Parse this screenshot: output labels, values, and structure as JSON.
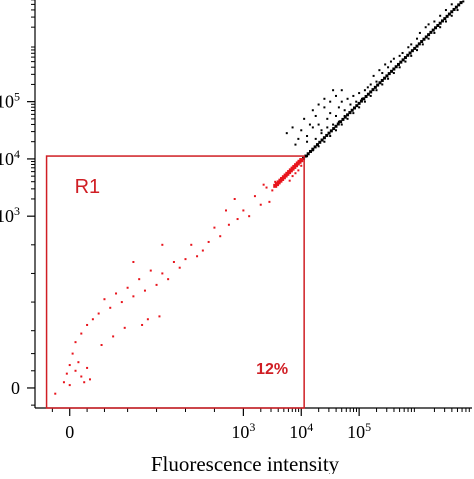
{
  "chart_data": {
    "type": "scatter",
    "title": "",
    "xlabel": "Fluorescence intensity",
    "ylabel": "",
    "scale": "biexponential",
    "xlim": [
      -0.6,
      6.95
    ],
    "ylim": [
      -0.35,
      6.95
    ],
    "x_ticks": [
      {
        "value": 0,
        "label": "0"
      },
      {
        "value": 3,
        "label": "10",
        "exp": "3"
      },
      {
        "value": 4,
        "label": "10",
        "exp": "4"
      },
      {
        "value": 5,
        "label": "10",
        "exp": "5"
      }
    ],
    "y_ticks": [
      {
        "value": 0,
        "label": "0"
      },
      {
        "value": 3,
        "label": "10",
        "exp": "3"
      },
      {
        "value": 4,
        "label": "10",
        "exp": "4"
      },
      {
        "value": 5,
        "label": "10",
        "exp": "5"
      }
    ],
    "grid": false,
    "colors": {
      "points": "#000000",
      "gated_points": "#e8141c",
      "gate": "#d01e24",
      "axis": "#000000"
    },
    "gate": {
      "name": "R1",
      "x_range": [
        -0.4,
        4.05
      ],
      "y_range": [
        -0.35,
        4.05
      ],
      "percent_label": "12%"
    },
    "series": [
      {
        "name": "",
        "color": "#000000",
        "points": [
          {
            "x": 4.1,
            "y": 4.05
          },
          {
            "x": 4.2,
            "y": 4.15
          },
          {
            "x": 4.3,
            "y": 4.22
          },
          {
            "x": 4.4,
            "y": 4.3
          },
          {
            "x": 4.5,
            "y": 4.4
          },
          {
            "x": 4.6,
            "y": 4.5
          },
          {
            "x": 4.7,
            "y": 4.6
          },
          {
            "x": 4.8,
            "y": 4.7
          },
          {
            "x": 4.9,
            "y": 4.8
          },
          {
            "x": 5.0,
            "y": 4.9
          },
          {
            "x": 5.1,
            "y": 5.0
          },
          {
            "x": 5.2,
            "y": 5.1
          },
          {
            "x": 5.3,
            "y": 5.2
          },
          {
            "x": 5.4,
            "y": 5.3
          },
          {
            "x": 5.5,
            "y": 5.4
          },
          {
            "x": 5.6,
            "y": 5.5
          },
          {
            "x": 5.7,
            "y": 5.6
          },
          {
            "x": 5.8,
            "y": 5.7
          },
          {
            "x": 5.9,
            "y": 5.8
          },
          {
            "x": 6.0,
            "y": 5.9
          },
          {
            "x": 6.1,
            "y": 6.0
          },
          {
            "x": 6.2,
            "y": 6.1
          },
          {
            "x": 6.3,
            "y": 6.2
          },
          {
            "x": 6.4,
            "y": 6.3
          },
          {
            "x": 6.5,
            "y": 6.4
          },
          {
            "x": 6.6,
            "y": 6.5
          },
          {
            "x": 6.7,
            "y": 6.6
          },
          {
            "x": 6.8,
            "y": 6.75
          },
          {
            "x": 6.9,
            "y": 6.85
          },
          {
            "x": 4.1,
            "y": 4.4
          },
          {
            "x": 4.2,
            "y": 4.55
          },
          {
            "x": 4.3,
            "y": 4.6
          },
          {
            "x": 4.35,
            "y": 4.45
          },
          {
            "x": 4.45,
            "y": 4.7
          },
          {
            "x": 4.5,
            "y": 4.8
          },
          {
            "x": 4.55,
            "y": 4.6
          },
          {
            "x": 4.6,
            "y": 4.75
          },
          {
            "x": 4.65,
            "y": 4.9
          },
          {
            "x": 4.7,
            "y": 5.0
          },
          {
            "x": 4.75,
            "y": 4.85
          },
          {
            "x": 4.8,
            "y": 5.05
          },
          {
            "x": 4.85,
            "y": 4.95
          },
          {
            "x": 4.9,
            "y": 5.1
          },
          {
            "x": 4.95,
            "y": 5.0
          },
          {
            "x": 5.0,
            "y": 5.15
          },
          {
            "x": 5.05,
            "y": 5.05
          },
          {
            "x": 5.1,
            "y": 5.2
          },
          {
            "x": 5.2,
            "y": 5.3
          },
          {
            "x": 5.3,
            "y": 5.35
          },
          {
            "x": 5.4,
            "y": 5.5
          },
          {
            "x": 5.5,
            "y": 5.6
          },
          {
            "x": 5.6,
            "y": 5.75
          },
          {
            "x": 5.75,
            "y": 5.85
          },
          {
            "x": 5.9,
            "y": 6.0
          },
          {
            "x": 6.05,
            "y": 6.2
          },
          {
            "x": 6.2,
            "y": 6.35
          },
          {
            "x": 6.4,
            "y": 6.5
          },
          {
            "x": 6.6,
            "y": 6.7
          },
          {
            "x": 4.15,
            "y": 4.6
          },
          {
            "x": 4.25,
            "y": 4.75
          },
          {
            "x": 4.4,
            "y": 4.9
          },
          {
            "x": 4.5,
            "y": 5.0
          },
          {
            "x": 4.6,
            "y": 5.1
          },
          {
            "x": 4.7,
            "y": 5.2
          },
          {
            "x": 4.3,
            "y": 4.95
          },
          {
            "x": 4.4,
            "y": 5.05
          },
          {
            "x": 4.55,
            "y": 5.2
          },
          {
            "x": 4.2,
            "y": 4.85
          },
          {
            "x": 4.05,
            "y": 4.7
          },
          {
            "x": 3.75,
            "y": 4.45
          },
          {
            "x": 3.85,
            "y": 4.55
          },
          {
            "x": 3.95,
            "y": 4.35
          },
          {
            "x": 4.0,
            "y": 4.5
          },
          {
            "x": 3.9,
            "y": 4.25
          },
          {
            "x": 4.1,
            "y": 4.3
          },
          {
            "x": 4.25,
            "y": 4.35
          },
          {
            "x": 4.35,
            "y": 4.5
          },
          {
            "x": 4.45,
            "y": 4.55
          },
          {
            "x": 4.65,
            "y": 4.65
          },
          {
            "x": 4.75,
            "y": 4.75
          },
          {
            "x": 4.85,
            "y": 4.8
          },
          {
            "x": 5.15,
            "y": 5.25
          },
          {
            "x": 5.25,
            "y": 5.45
          },
          {
            "x": 5.35,
            "y": 5.55
          },
          {
            "x": 5.45,
            "y": 5.65
          },
          {
            "x": 5.55,
            "y": 5.7
          },
          {
            "x": 5.7,
            "y": 5.8
          },
          {
            "x": 5.85,
            "y": 5.95
          },
          {
            "x": 6.0,
            "y": 6.1
          },
          {
            "x": 6.15,
            "y": 6.3
          },
          {
            "x": 6.3,
            "y": 6.4
          },
          {
            "x": 6.5,
            "y": 6.6
          },
          {
            "x": 6.7,
            "y": 6.8
          },
          {
            "x": 6.85,
            "y": 6.9
          }
        ]
      },
      {
        "name": "R1",
        "color": "#e8141c",
        "points": [
          {
            "x": 3.95,
            "y": 3.95
          },
          {
            "x": 3.9,
            "y": 3.9
          },
          {
            "x": 3.85,
            "y": 3.85
          },
          {
            "x": 3.8,
            "y": 3.78
          },
          {
            "x": 3.75,
            "y": 3.72
          },
          {
            "x": 3.7,
            "y": 3.68
          },
          {
            "x": 3.65,
            "y": 3.66
          },
          {
            "x": 3.9,
            "y": 3.75
          },
          {
            "x": 3.85,
            "y": 3.7
          },
          {
            "x": 3.8,
            "y": 3.62
          },
          {
            "x": 3.95,
            "y": 3.8
          },
          {
            "x": 4.0,
            "y": 3.88
          },
          {
            "x": 3.6,
            "y": 3.55
          },
          {
            "x": 3.55,
            "y": 3.6
          },
          {
            "x": 3.5,
            "y": 3.45
          },
          {
            "x": 3.4,
            "y": 3.5
          },
          {
            "x": 3.3,
            "y": 3.2
          },
          {
            "x": 3.2,
            "y": 3.35
          },
          {
            "x": 3.1,
            "y": 3.0
          },
          {
            "x": 3.0,
            "y": 3.1
          },
          {
            "x": 2.9,
            "y": 2.95
          },
          {
            "x": 2.75,
            "y": 2.85
          },
          {
            "x": 2.6,
            "y": 2.65
          },
          {
            "x": 2.5,
            "y": 2.8
          },
          {
            "x": 2.4,
            "y": 2.55
          },
          {
            "x": 2.3,
            "y": 2.4
          },
          {
            "x": 2.2,
            "y": 2.3
          },
          {
            "x": 2.1,
            "y": 2.5
          },
          {
            "x": 2.0,
            "y": 2.25
          },
          {
            "x": 1.9,
            "y": 2.1
          },
          {
            "x": 1.8,
            "y": 2.2
          },
          {
            "x": 1.7,
            "y": 1.9
          },
          {
            "x": 1.6,
            "y": 2.0
          },
          {
            "x": 1.5,
            "y": 1.8
          },
          {
            "x": 1.4,
            "y": 2.05
          },
          {
            "x": 1.3,
            "y": 1.7
          },
          {
            "x": 1.2,
            "y": 1.9
          },
          {
            "x": 1.1,
            "y": 1.6
          },
          {
            "x": 1.0,
            "y": 1.75
          },
          {
            "x": 0.9,
            "y": 1.5
          },
          {
            "x": 0.8,
            "y": 1.65
          },
          {
            "x": 0.7,
            "y": 1.4
          },
          {
            "x": 0.6,
            "y": 1.55
          },
          {
            "x": 0.5,
            "y": 1.3
          },
          {
            "x": 0.4,
            "y": 1.2
          },
          {
            "x": 0.3,
            "y": 1.1
          },
          {
            "x": 0.2,
            "y": 0.95
          },
          {
            "x": 0.1,
            "y": 0.8
          },
          {
            "x": 0.05,
            "y": 0.6
          },
          {
            "x": 0.0,
            "y": 0.4
          },
          {
            "x": 0.1,
            "y": 0.3
          },
          {
            "x": 0.15,
            "y": 0.45
          },
          {
            "x": 0.2,
            "y": 0.2
          },
          {
            "x": 0.25,
            "y": 0.1
          },
          {
            "x": -0.1,
            "y": 0.1
          },
          {
            "x": -0.05,
            "y": 0.25
          },
          {
            "x": 0.3,
            "y": 0.35
          },
          {
            "x": -0.25,
            "y": -0.1
          },
          {
            "x": 0.0,
            "y": 0.05
          },
          {
            "x": 0.35,
            "y": 0.15
          },
          {
            "x": 1.6,
            "y": 2.5
          },
          {
            "x": 1.1,
            "y": 2.2
          },
          {
            "x": 2.7,
            "y": 3.1
          },
          {
            "x": 3.35,
            "y": 3.55
          },
          {
            "x": 3.45,
            "y": 3.25
          },
          {
            "x": 2.85,
            "y": 3.3
          },
          {
            "x": 1.35,
            "y": 1.2
          },
          {
            "x": 1.55,
            "y": 1.25
          },
          {
            "x": 0.95,
            "y": 1.05
          },
          {
            "x": 1.25,
            "y": 1.1
          },
          {
            "x": 0.75,
            "y": 0.9
          },
          {
            "x": 0.55,
            "y": 0.75
          }
        ]
      }
    ]
  }
}
